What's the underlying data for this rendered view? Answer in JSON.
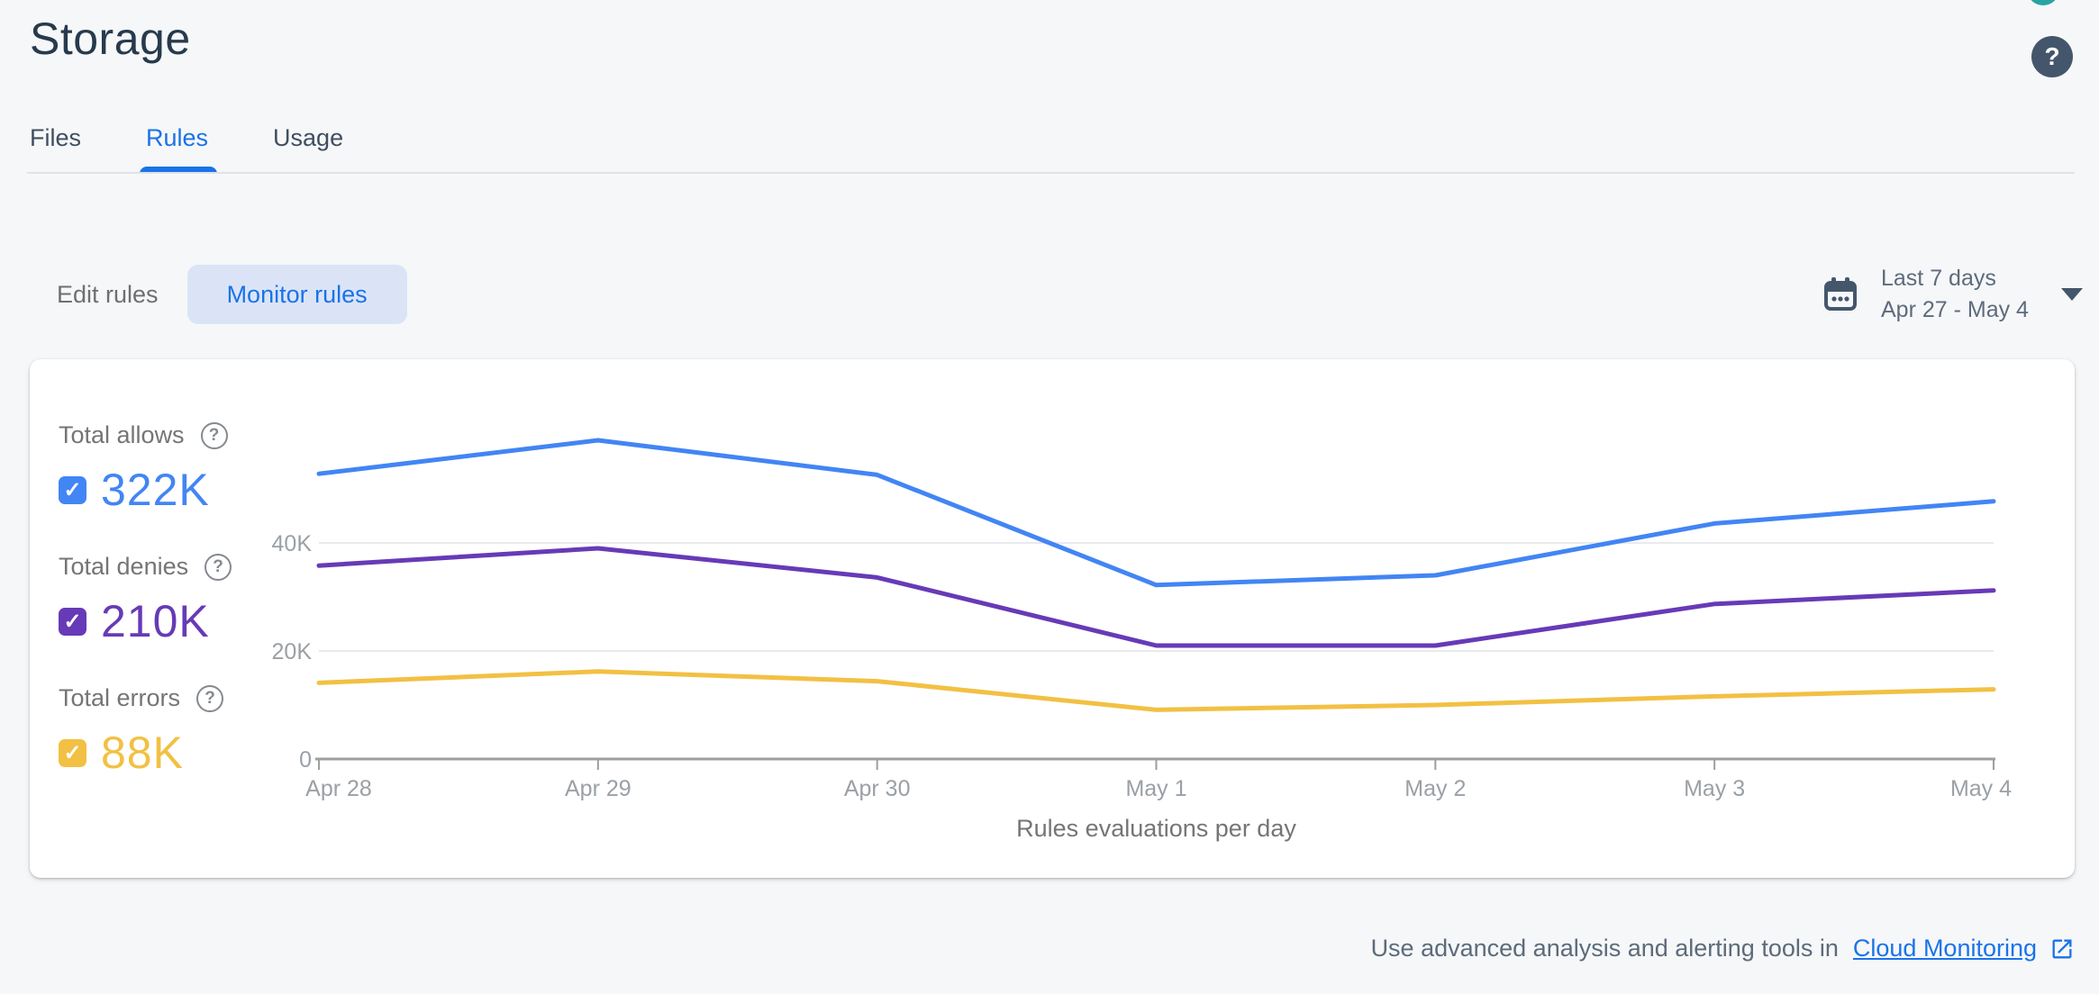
{
  "header": {
    "title": "Storage",
    "help_icon": "question-mark",
    "avatar_color": "#2aa3a3"
  },
  "tabs": {
    "items": [
      {
        "label": "Files",
        "active": false
      },
      {
        "label": "Rules",
        "active": true
      },
      {
        "label": "Usage",
        "active": false
      }
    ],
    "accent_color": "#1a73e8"
  },
  "controls": {
    "edit_rules_label": "Edit rules",
    "monitor_rules_label": "Monitor rules",
    "date_range": {
      "preset": "Last 7 days",
      "range": "Apr 27 - May 4",
      "icon": "calendar"
    }
  },
  "legend": {
    "items": [
      {
        "label": "Total allows",
        "value": "322K",
        "color": "#4285f4",
        "checked": true
      },
      {
        "label": "Total denies",
        "value": "210K",
        "color": "#673ab7",
        "checked": true
      },
      {
        "label": "Total errors",
        "value": "88K",
        "color": "#f2c043",
        "checked": true
      }
    ],
    "check_glyph": "✓"
  },
  "chart_data": {
    "type": "line",
    "title": "Rules evaluations per day",
    "categories": [
      "Apr 28",
      "Apr 29",
      "Apr 30",
      "May 1",
      "May 2",
      "May 3",
      "May 4"
    ],
    "series": [
      {
        "name": "Total allows",
        "color": "#4285f4",
        "values": [
          52800,
          59000,
          52600,
          32200,
          34000,
          43600,
          47700
        ]
      },
      {
        "name": "Total denies",
        "color": "#673ab7",
        "values": [
          35800,
          39000,
          33600,
          21000,
          21000,
          28700,
          31200
        ]
      },
      {
        "name": "Total errors",
        "color": "#f2c043",
        "values": [
          14100,
          16200,
          14400,
          9100,
          10000,
          11600,
          12900
        ]
      }
    ],
    "ylim": [
      0,
      60000
    ],
    "yticks": [
      {
        "value": 0,
        "label": "0"
      },
      {
        "value": 20000,
        "label": "20K"
      },
      {
        "value": 40000,
        "label": "40K"
      }
    ],
    "grid": "horizontal",
    "legend_position": "left",
    "axis_color": "#9e9e9e",
    "gridline_color": "#e8eaed"
  },
  "footer": {
    "text": "Use advanced analysis and alerting tools in",
    "link_label": "Cloud Monitoring"
  }
}
